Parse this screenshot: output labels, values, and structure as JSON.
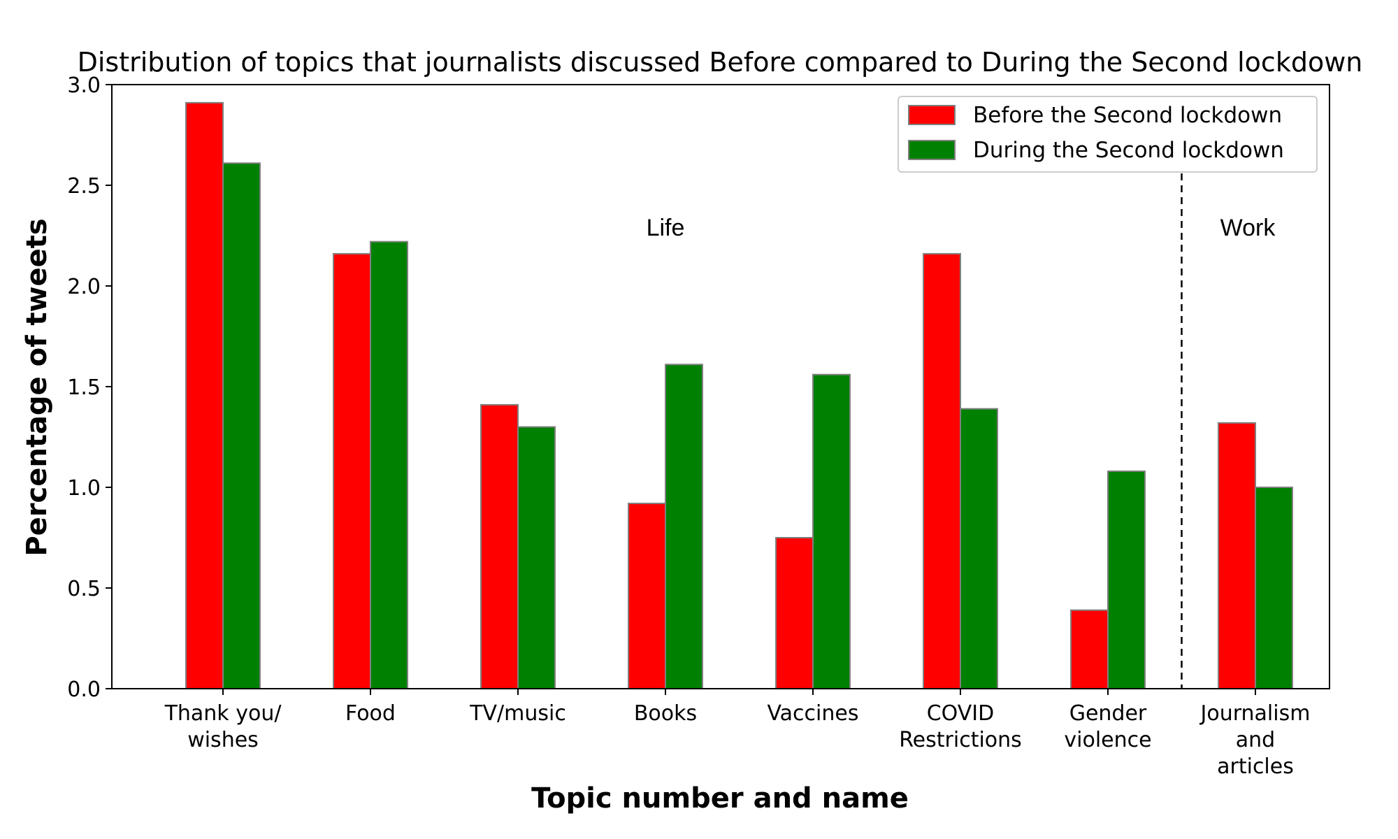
{
  "chart_data": {
    "type": "bar",
    "title": "Distribution of topics that journalists discussed Before compared to During the Second lockdown",
    "xlabel": "Topic number and name",
    "ylabel": "Percentage of tweets",
    "ylim": [
      0,
      3.0
    ],
    "yticks": [
      "0.0",
      "0.5",
      "1.0",
      "1.5",
      "2.0",
      "2.5",
      "3.0"
    ],
    "categories": [
      [
        "Thank you/",
        "wishes"
      ],
      [
        "Food"
      ],
      [
        "TV/music"
      ],
      [
        "Books"
      ],
      [
        "Vaccines"
      ],
      [
        "COVID",
        "Restrictions"
      ],
      [
        "Gender",
        "violence"
      ],
      [
        "Journalism",
        "and",
        "articles"
      ]
    ],
    "series": [
      {
        "name": "Before the Second lockdown",
        "color": "#ff0000",
        "values": [
          2.91,
          2.16,
          1.41,
          0.92,
          0.75,
          2.16,
          0.39,
          1.32
        ]
      },
      {
        "name": "During the Second lockdown",
        "color": "#008000",
        "values": [
          2.61,
          2.22,
          1.3,
          1.61,
          1.56,
          1.39,
          1.08,
          1.0
        ]
      }
    ],
    "bar_edge_color": "#808080",
    "legend_position": "upper right",
    "grid": false,
    "annotations": [
      {
        "text": "Life",
        "group": "topics 1-7"
      },
      {
        "text": "Work",
        "group": "topic 8"
      }
    ],
    "divider": {
      "style": "dashed",
      "between_categories": [
        6,
        7
      ]
    }
  }
}
